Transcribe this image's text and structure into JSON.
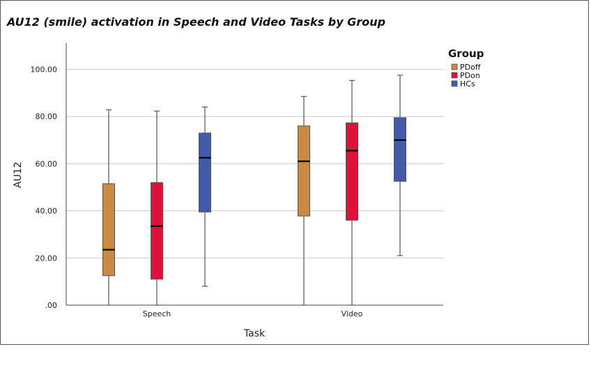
{
  "chart_data": {
    "type": "boxplot",
    "title": "AU12 (smile) activation in Speech and Video Tasks by Group",
    "xlabel": "Task",
    "ylabel": "AU12",
    "ylim": [
      0,
      110
    ],
    "yticks": [
      ".00",
      "20.00",
      "40.00",
      "60.00",
      "80.00",
      "100.00"
    ],
    "ytick_values": [
      0,
      20,
      40,
      60,
      80,
      100
    ],
    "categories": [
      "Speech",
      "Video"
    ],
    "grid": "horizontal",
    "legend": {
      "title": "Group",
      "placement": "top-right"
    },
    "series": [
      {
        "name": "PDoff",
        "color": "#C98A45",
        "boxes": [
          {
            "min": 0,
            "q1": 12.5,
            "median": 23.5,
            "q3": 51.5,
            "max": 82.8
          },
          {
            "min": 0,
            "q1": 37.8,
            "median": 61.0,
            "q3": 76.0,
            "max": 88.5
          }
        ]
      },
      {
        "name": "PDon",
        "color": "#E0103A",
        "boxes": [
          {
            "min": 0,
            "q1": 11.0,
            "median": 33.5,
            "q3": 52.0,
            "max": 82.3
          },
          {
            "min": 0,
            "q1": 36.0,
            "median": 65.5,
            "q3": 77.3,
            "max": 95.3
          }
        ]
      },
      {
        "name": "HCs",
        "color": "#3F5BA9",
        "boxes": [
          {
            "min": 8.0,
            "q1": 39.5,
            "median": 62.5,
            "q3": 73.0,
            "max": 84.0
          },
          {
            "min": 21.0,
            "q1": 52.5,
            "median": 70.0,
            "q3": 79.5,
            "max": 97.5
          }
        ]
      }
    ]
  }
}
